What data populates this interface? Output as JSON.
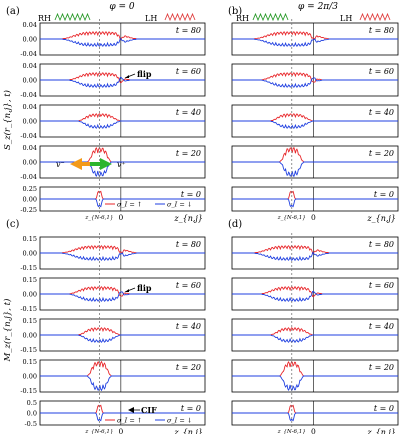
{
  "panels": [
    {
      "id": "a",
      "label": "(a)",
      "phi": "φ = 0",
      "rh": "RH",
      "lh": "LH",
      "flip": "flip"
    },
    {
      "id": "b",
      "label": "(b)",
      "phi": "φ = 2π/3",
      "rh": "RH",
      "lh": "LH"
    },
    {
      "id": "c",
      "label": "(c)",
      "flip": "flip",
      "cif": "CIF"
    },
    {
      "id": "d",
      "label": "(d)"
    }
  ],
  "times": [
    "t = 80",
    "t = 60",
    "t = 40",
    "t = 20",
    "t = 0"
  ],
  "top_ylabel": "S_z(r_{n,j}, t)",
  "bottom_ylabel": "M_z(r_{n,j}, t)",
  "xlabel": "z_{n,j}",
  "xmark": "z_{N-6,1}",
  "zero": "0",
  "legend": {
    "up": "σ_I = ↑",
    "down": "σ_I = ↓"
  },
  "velocity": {
    "minus": "v⁻",
    "plus": "v⁺"
  },
  "top_ticks": [
    [
      "0.04",
      "0.00",
      "-0.04"
    ],
    [
      "0.04",
      "0.00",
      "-0.04"
    ],
    [
      "0.04",
      "0.00",
      "-0.04"
    ],
    [
      "0.04",
      "0.00",
      "-0.04"
    ],
    [
      "0.25",
      "0.00",
      "-0.25"
    ]
  ],
  "bottom_ticks": [
    [
      "0.15",
      "0.00",
      "-0.15"
    ],
    [
      "0.15",
      "0.00",
      "-0.15"
    ],
    [
      "0.15",
      "0.00",
      "-0.15"
    ],
    [
      "0.15",
      "0.00",
      "-0.15"
    ],
    [
      "0.5",
      "0.0",
      "-0.5"
    ]
  ],
  "colors": {
    "up": "#e8262a",
    "down": "#1f3fe0",
    "rh": "#2a9a2a",
    "lh": "#e04040",
    "arrow_left": "#f39a1a",
    "arrow_right": "#2db52d"
  }
}
